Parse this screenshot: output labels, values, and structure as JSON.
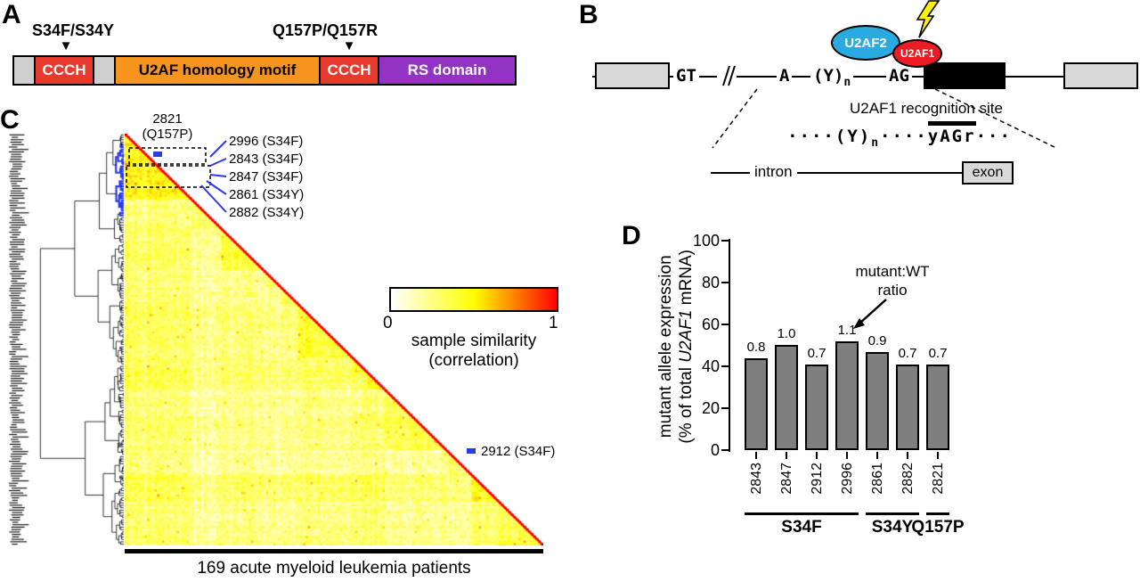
{
  "panelA": {
    "label": "A",
    "mutation_label_1": "S34F/S34Y",
    "mutation_label_2": "Q157P/Q157R",
    "domains": [
      {
        "label": "",
        "color": "#CFCFCF",
        "text_color": "#000000"
      },
      {
        "label": "CCCH",
        "color": "#E8392F",
        "text_color": "#FFFFFF"
      },
      {
        "label": "",
        "color": "#CFCFCF",
        "text_color": "#000000"
      },
      {
        "label": "U2AF homology motif",
        "color": "#F7941D",
        "text_color": "#000000"
      },
      {
        "label": "CCCH",
        "color": "#E8392F",
        "text_color": "#FFFFFF"
      },
      {
        "label": "RS domain",
        "color": "#9333C6",
        "text_color": "#FFFFFF"
      }
    ]
  },
  "panelB": {
    "label": "B",
    "u2af2": {
      "label": "U2AF2",
      "color": "#29ABE2"
    },
    "u2af1": {
      "label": "U2AF1",
      "color": "#ED1C24"
    },
    "splice_donor": "GT",
    "branch_point": "A",
    "polypyrimidine": "(Y)",
    "polypyrimidine_sub": "n",
    "splice_acceptor": "AG",
    "recognition_site_label": "U2AF1 recognition site",
    "zoom_dots_left": "····",
    "zoom_py": "(Y)",
    "zoom_py_sub": "n",
    "zoom_dots_mid": "····",
    "zoom_site": "yAGr",
    "zoom_dots_right": "···",
    "intron_label": "intron",
    "exon_label": "exon",
    "lightning_color": "#FFF200"
  },
  "panelC": {
    "label": "C",
    "callout_top": {
      "line1": "2821",
      "line2": "(Q157P)"
    },
    "callouts": [
      "2996 (S34F)",
      "2843 (S34F)",
      "2847 (S34F)",
      "2861 (S34Y)",
      "2882 (S34Y)"
    ],
    "callout_right": "2912 (S34F)",
    "colorbar": {
      "min": "0",
      "max": "1",
      "label_line1": "sample similarity",
      "label_line2": "(correlation)"
    },
    "x_axis_label": "169 acute myeloid leukemia patients",
    "highlight_color": "#2B3BE8"
  },
  "panelD": {
    "label": "D",
    "y_axis_label_line1": "mutant allele expression",
    "y_axis_label_line2_prefix": "(% of total ",
    "y_axis_label_gene": "U2AF1",
    "y_axis_label_line2_suffix": " mRNA)",
    "annotation_line1": "mutant:WT",
    "annotation_line2": "ratio"
  },
  "chart_data": [
    {
      "type": "heatmap",
      "n_samples": 169,
      "shape": "lower-left-triangle",
      "colormap": {
        "0": "#FFFFFF",
        "0.5": "#FFFF00",
        "1": "#FF0000"
      },
      "colorbar_label": "sample similarity (correlation)",
      "colorbar_range": [
        0,
        1
      ],
      "x_label": "169 acute myeloid leukemia patients",
      "diagonal_value": 1,
      "typical_offdiagonal_range": [
        0.1,
        0.6
      ],
      "highlighted_samples": [
        "2821 (Q157P)",
        "2996 (S34F)",
        "2843 (S34F)",
        "2847 (S34F)",
        "2861 (S34Y)",
        "2882 (S34Y)",
        "2912 (S34F)"
      ],
      "dendrogram": "left",
      "seed": 42
    },
    {
      "type": "bar",
      "categories": [
        "2843",
        "2847",
        "2912",
        "2996",
        "2861",
        "2882",
        "2821"
      ],
      "values": [
        44,
        50,
        41,
        52,
        47,
        41,
        41
      ],
      "bar_labels": [
        "0.8",
        "1.0",
        "0.7",
        "1.1",
        "0.9",
        "0.7",
        "0.7"
      ],
      "groups": [
        {
          "label": "S34F",
          "from": 0,
          "to": 3
        },
        {
          "label": "S34Y",
          "from": 4,
          "to": 5
        },
        {
          "label": "Q157P",
          "from": 6,
          "to": 6
        }
      ],
      "ylabel": "mutant allele expression (% of total U2AF1 mRNA)",
      "ylim": [
        0,
        100
      ],
      "yticks": [
        0,
        20,
        40,
        60,
        80,
        100
      ],
      "bar_color": "#7F7F7F",
      "annotation": "mutant:WT ratio"
    }
  ]
}
